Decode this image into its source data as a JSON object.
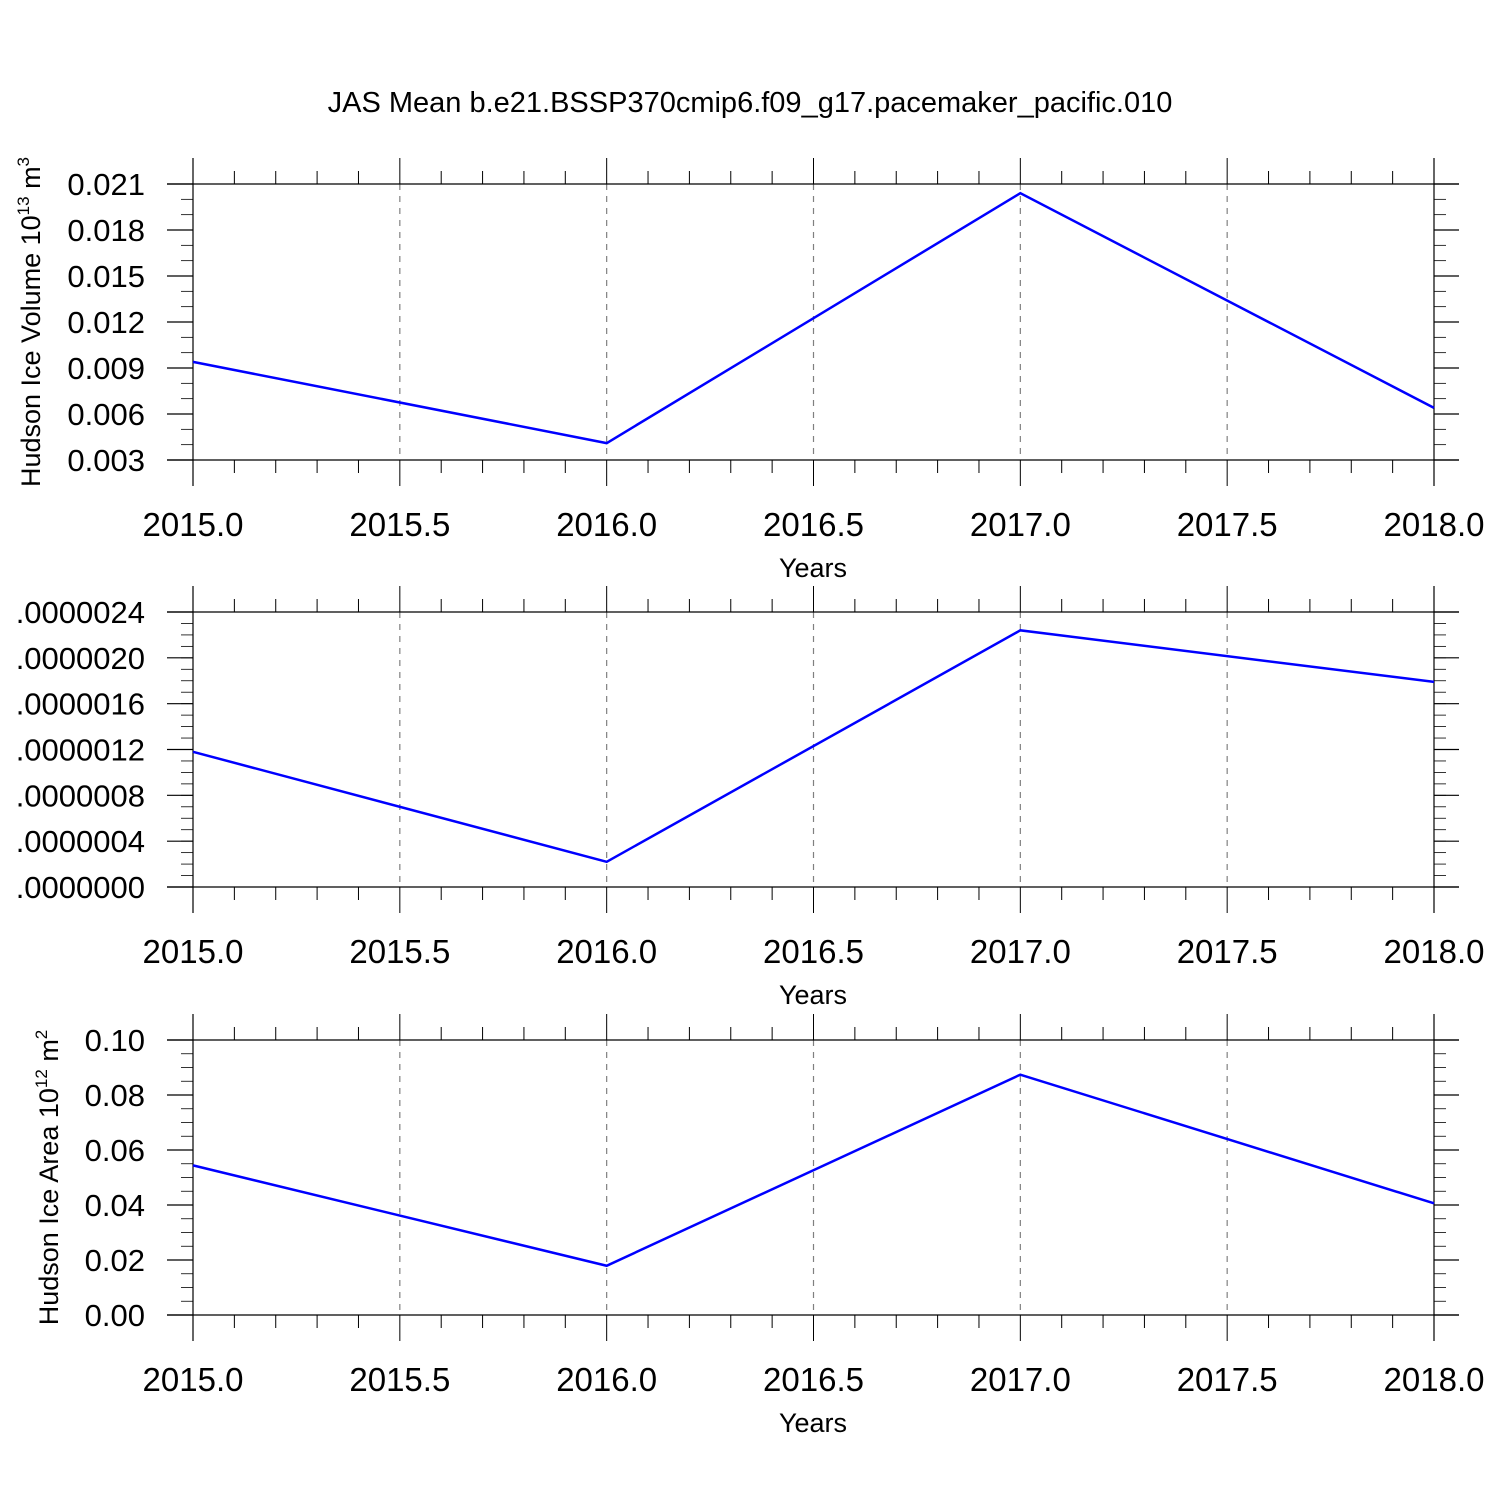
{
  "figure": {
    "title": "JAS Mean b.e21.BSSP370cmip6.f09_g17.pacemaker_pacific.010",
    "line_color": "#0000ff",
    "grid_color": "#808080"
  },
  "chart_data": [
    {
      "type": "line",
      "xlabel": "Years",
      "ylabel": {
        "base": "Hudson Ice Volume 10",
        "sup": "13",
        "unit": " m",
        "unit_sup": "3"
      },
      "x_ticks": [
        "2015.0",
        "2015.5",
        "2016.0",
        "2016.5",
        "2017.0",
        "2017.5",
        "2018.0"
      ],
      "x_tick_values": [
        2015.0,
        2015.5,
        2016.0,
        2016.5,
        2017.0,
        2017.5,
        2018.0
      ],
      "xlim": [
        2015.0,
        2018.0
      ],
      "y_ticks": [
        "0.003",
        "0.006",
        "0.009",
        "0.012",
        "0.015",
        "0.018",
        "0.021"
      ],
      "y_tick_values": [
        0.003,
        0.006,
        0.009,
        0.012,
        0.015,
        0.018,
        0.021
      ],
      "ylim": [
        0.003,
        0.021
      ],
      "y_minor_step": 0.001,
      "x": [
        2015,
        2016,
        2017,
        2018
      ],
      "y": [
        0.0094,
        0.0041,
        0.0204,
        0.0064
      ],
      "grid": "dashed vertical"
    },
    {
      "type": "line",
      "xlabel": "Years",
      "ylabel": null,
      "x_ticks": [
        "2015.0",
        "2015.5",
        "2016.0",
        "2016.5",
        "2017.0",
        "2017.5",
        "2018.0"
      ],
      "x_tick_values": [
        2015.0,
        2015.5,
        2016.0,
        2016.5,
        2017.0,
        2017.5,
        2018.0
      ],
      "xlim": [
        2015.0,
        2018.0
      ],
      "y_ticks": [
        ".0000000",
        ".0000004",
        ".0000008",
        ".0000012",
        ".0000016",
        ".0000020",
        ".0000024"
      ],
      "y_tick_values": [
        0.0,
        4e-07,
        8e-07,
        1.2e-06,
        1.6e-06,
        2e-06,
        2.4e-06
      ],
      "ylim": [
        0.0,
        2.4e-06
      ],
      "y_minor_step": 1e-07,
      "x": [
        2015,
        2016,
        2017,
        2018
      ],
      "y": [
        1.18e-06,
        2.2e-07,
        2.24e-06,
        1.79e-06
      ],
      "grid": "dashed vertical"
    },
    {
      "type": "line",
      "xlabel": "Years",
      "ylabel": {
        "base": "Hudson Ice Area 10",
        "sup": "12",
        "unit": " m",
        "unit_sup": "2"
      },
      "x_ticks": [
        "2015.0",
        "2015.5",
        "2016.0",
        "2016.5",
        "2017.0",
        "2017.5",
        "2018.0"
      ],
      "x_tick_values": [
        2015.0,
        2015.5,
        2016.0,
        2016.5,
        2017.0,
        2017.5,
        2018.0
      ],
      "xlim": [
        2015.0,
        2018.0
      ],
      "y_ticks": [
        "0.00",
        "0.02",
        "0.04",
        "0.06",
        "0.08",
        "0.10"
      ],
      "y_tick_values": [
        0.0,
        0.02,
        0.04,
        0.06,
        0.08,
        0.1
      ],
      "ylim": [
        0.0,
        0.1
      ],
      "y_minor_step": 0.005,
      "x": [
        2015,
        2016,
        2017,
        2018
      ],
      "y": [
        0.0544,
        0.0179,
        0.0874,
        0.0406
      ],
      "grid": "dashed vertical"
    }
  ]
}
